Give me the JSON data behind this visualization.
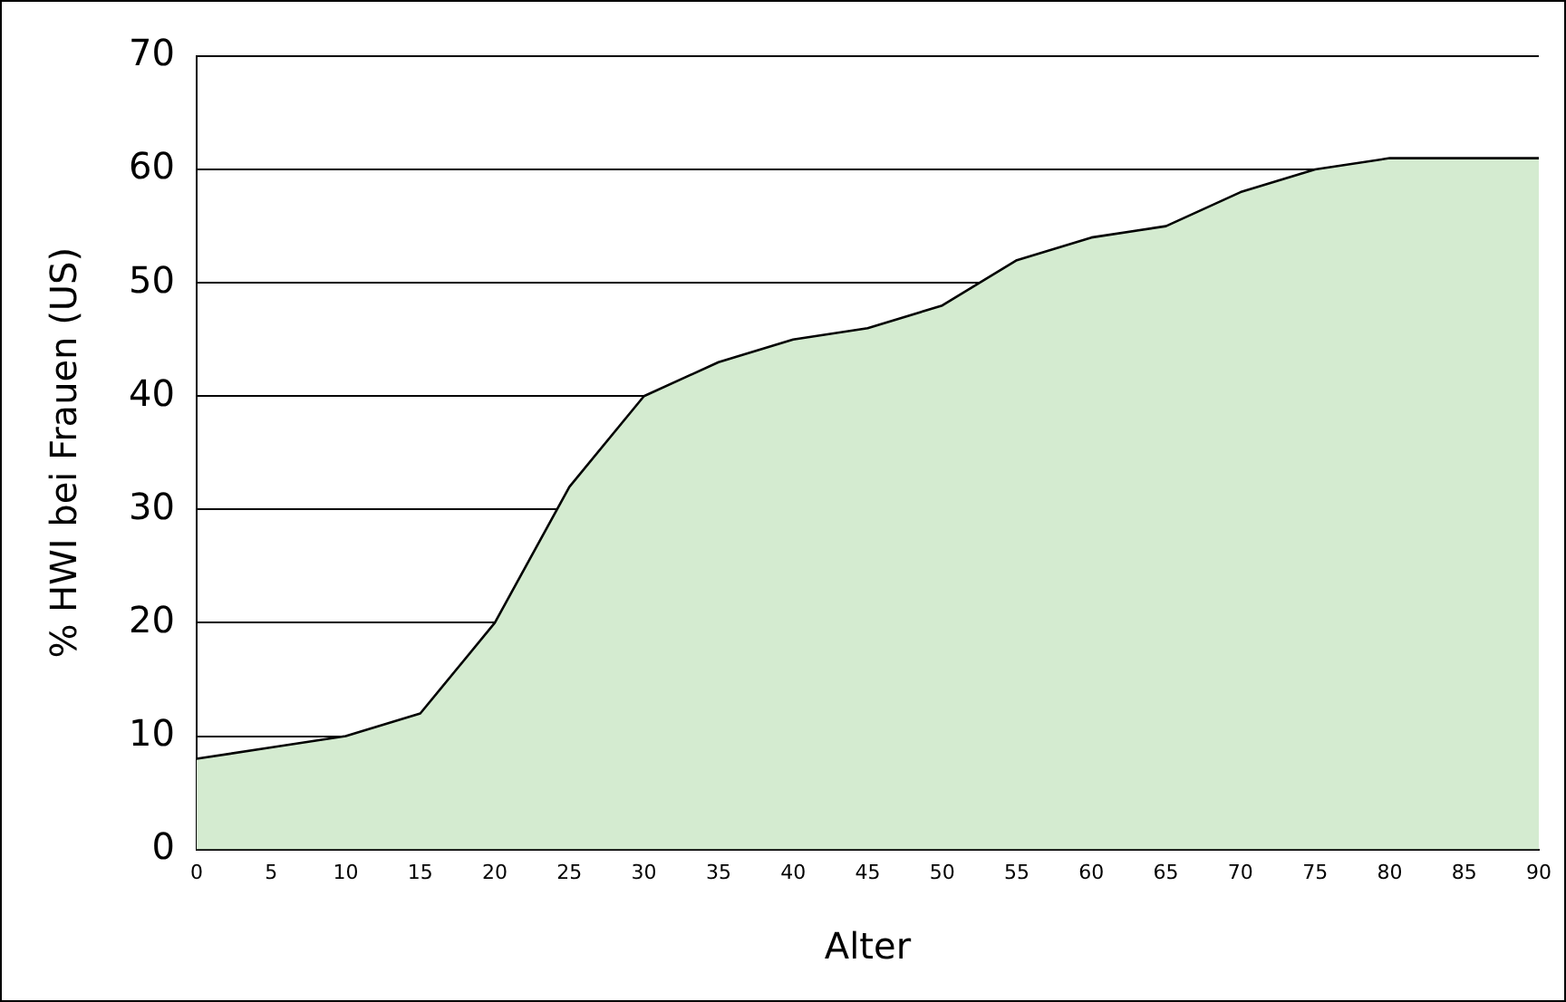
{
  "chart_data": {
    "type": "area",
    "xlabel": "Alter",
    "ylabel": "% HWI bei Frauen (US)",
    "x": [
      0,
      5,
      10,
      15,
      20,
      25,
      30,
      35,
      40,
      45,
      50,
      55,
      60,
      65,
      70,
      75,
      80,
      85,
      90
    ],
    "series": [
      {
        "color": "#d4ebd0",
        "values": [
          8,
          9,
          10,
          12,
          20,
          32,
          40,
          43,
          45,
          46,
          48,
          52,
          54,
          55,
          58,
          60,
          61,
          61,
          61
        ]
      }
    ],
    "xlim": [
      0,
      90
    ],
    "xticks": [
      0,
      5,
      10,
      15,
      20,
      25,
      30,
      35,
      40,
      45,
      50,
      55,
      60,
      65,
      70,
      75,
      80,
      85,
      90
    ],
    "ylim": [
      0,
      70
    ],
    "yticks": [
      0,
      10,
      20,
      30,
      40,
      50,
      60,
      70
    ],
    "grid": "y",
    "legend": false
  }
}
